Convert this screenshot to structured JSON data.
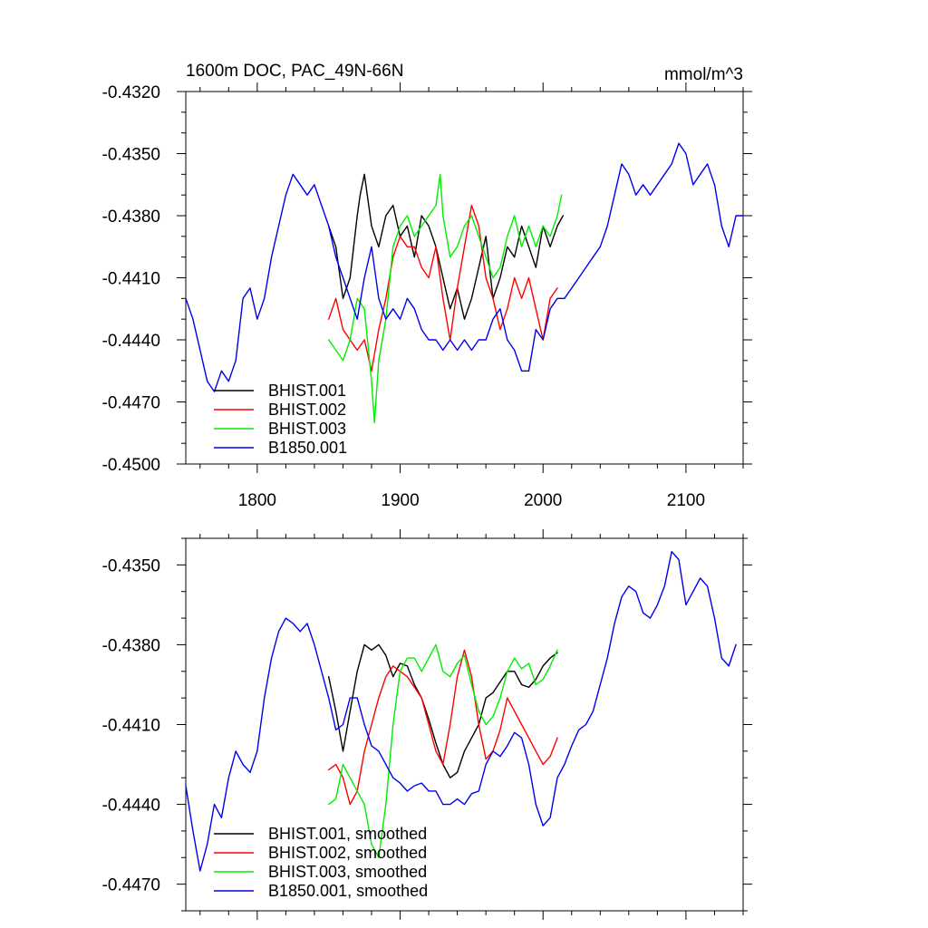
{
  "chart_data": [
    {
      "type": "line",
      "title": "1600m DOC, PAC_49N-66N",
      "units": "mmol/m^3",
      "xlim": [
        1750,
        2140
      ],
      "ylim": [
        -0.45,
        -0.432
      ],
      "xticks": [
        1800,
        1900,
        2000,
        2100
      ],
      "xtick_labels": [
        "1800",
        "1900",
        "2000",
        "2100"
      ],
      "yticks": [
        -0.432,
        -0.435,
        -0.438,
        -0.441,
        -0.444,
        -0.447,
        -0.45
      ],
      "ytick_labels": [
        "-0.4320",
        "-0.4350",
        "-0.4380",
        "-0.4410",
        "-0.4440",
        "-0.4470",
        "-0.4500"
      ],
      "legend_position": "bottom-left",
      "series": [
        {
          "name": "BHIST.001",
          "color": "#000000",
          "x": [
            1850,
            1855,
            1860,
            1865,
            1870,
            1872,
            1875,
            1880,
            1885,
            1890,
            1895,
            1900,
            1905,
            1910,
            1915,
            1920,
            1925,
            1930,
            1935,
            1940,
            1945,
            1950,
            1955,
            1960,
            1965,
            1970,
            1975,
            1980,
            1985,
            1990,
            1995,
            2000,
            2005,
            2010,
            2014
          ],
          "y": [
            -0.4385,
            -0.4395,
            -0.442,
            -0.441,
            -0.438,
            -0.437,
            -0.436,
            -0.4385,
            -0.4395,
            -0.438,
            -0.4375,
            -0.439,
            -0.4385,
            -0.44,
            -0.438,
            -0.4385,
            -0.4395,
            -0.441,
            -0.4425,
            -0.4415,
            -0.443,
            -0.442,
            -0.4405,
            -0.439,
            -0.442,
            -0.441,
            -0.4395,
            -0.44,
            -0.4385,
            -0.4395,
            -0.4405,
            -0.4385,
            -0.4395,
            -0.4385,
            -0.438
          ]
        },
        {
          "name": "BHIST.002",
          "color": "#ff0000",
          "x": [
            1850,
            1855,
            1860,
            1865,
            1870,
            1875,
            1880,
            1885,
            1890,
            1895,
            1900,
            1905,
            1910,
            1915,
            1920,
            1925,
            1930,
            1935,
            1940,
            1945,
            1950,
            1955,
            1960,
            1965,
            1970,
            1975,
            1980,
            1985,
            1990,
            1995,
            2000,
            2005,
            2010
          ],
          "y": [
            -0.443,
            -0.442,
            -0.4435,
            -0.444,
            -0.4445,
            -0.444,
            -0.4455,
            -0.4435,
            -0.442,
            -0.44,
            -0.439,
            -0.4395,
            -0.4395,
            -0.4405,
            -0.441,
            -0.4395,
            -0.442,
            -0.444,
            -0.4415,
            -0.4395,
            -0.4375,
            -0.4385,
            -0.441,
            -0.442,
            -0.4435,
            -0.4425,
            -0.441,
            -0.442,
            -0.441,
            -0.4425,
            -0.444,
            -0.442,
            -0.4415
          ]
        },
        {
          "name": "BHIST.003",
          "color": "#00ee00",
          "x": [
            1850,
            1855,
            1860,
            1865,
            1870,
            1875,
            1880,
            1882,
            1885,
            1890,
            1895,
            1900,
            1905,
            1910,
            1915,
            1920,
            1925,
            1928,
            1930,
            1935,
            1940,
            1945,
            1950,
            1955,
            1960,
            1965,
            1970,
            1975,
            1980,
            1985,
            1990,
            1995,
            2000,
            2005,
            2010,
            2013
          ],
          "y": [
            -0.444,
            -0.4445,
            -0.445,
            -0.444,
            -0.442,
            -0.4425,
            -0.446,
            -0.448,
            -0.445,
            -0.443,
            -0.4395,
            -0.4385,
            -0.438,
            -0.439,
            -0.4385,
            -0.438,
            -0.4375,
            -0.436,
            -0.438,
            -0.44,
            -0.4395,
            -0.4385,
            -0.438,
            -0.439,
            -0.44,
            -0.441,
            -0.4405,
            -0.439,
            -0.438,
            -0.4395,
            -0.4385,
            -0.4395,
            -0.4385,
            -0.439,
            -0.438,
            -0.437
          ]
        },
        {
          "name": "B1850.001",
          "color": "#0000ee",
          "x": [
            1750,
            1755,
            1760,
            1765,
            1770,
            1775,
            1780,
            1785,
            1790,
            1795,
            1800,
            1805,
            1810,
            1815,
            1820,
            1825,
            1830,
            1835,
            1840,
            1845,
            1850,
            1855,
            1860,
            1865,
            1870,
            1875,
            1880,
            1885,
            1890,
            1895,
            1900,
            1905,
            1910,
            1915,
            1920,
            1925,
            1930,
            1935,
            1940,
            1945,
            1950,
            1955,
            1960,
            1965,
            1970,
            1975,
            1980,
            1985,
            1990,
            1995,
            2000,
            2005,
            2010,
            2015,
            2020,
            2025,
            2030,
            2035,
            2040,
            2045,
            2050,
            2055,
            2060,
            2065,
            2070,
            2075,
            2080,
            2085,
            2090,
            2095,
            2100,
            2105,
            2110,
            2115,
            2120,
            2125,
            2130,
            2135,
            2140
          ],
          "y": [
            -0.442,
            -0.443,
            -0.4445,
            -0.446,
            -0.4465,
            -0.4455,
            -0.446,
            -0.445,
            -0.442,
            -0.4415,
            -0.443,
            -0.442,
            -0.44,
            -0.4385,
            -0.437,
            -0.436,
            -0.4365,
            -0.437,
            -0.4365,
            -0.4375,
            -0.4385,
            -0.44,
            -0.441,
            -0.442,
            -0.443,
            -0.441,
            -0.4395,
            -0.442,
            -0.443,
            -0.4425,
            -0.443,
            -0.442,
            -0.4425,
            -0.4435,
            -0.444,
            -0.444,
            -0.4445,
            -0.444,
            -0.4445,
            -0.444,
            -0.4445,
            -0.444,
            -0.444,
            -0.443,
            -0.4425,
            -0.444,
            -0.4445,
            -0.4455,
            -0.4455,
            -0.4435,
            -0.444,
            -0.4425,
            -0.442,
            -0.442,
            -0.4415,
            -0.441,
            -0.4405,
            -0.44,
            -0.4395,
            -0.4385,
            -0.437,
            -0.4355,
            -0.436,
            -0.437,
            -0.4365,
            -0.437,
            -0.4365,
            -0.436,
            -0.4355,
            -0.4345,
            -0.435,
            -0.4365,
            -0.436,
            -0.4355,
            -0.4365,
            -0.4385,
            -0.4395,
            -0.438,
            -0.438
          ]
        }
      ]
    },
    {
      "type": "line",
      "title": "",
      "xlim": [
        1750,
        2140
      ],
      "ylim": [
        -0.448,
        -0.434
      ],
      "xticks": [
        1800,
        1900,
        2000,
        2100
      ],
      "yticks": [
        -0.435,
        -0.438,
        -0.441,
        -0.444,
        -0.447
      ],
      "ytick_labels": [
        "-0.4350",
        "-0.4380",
        "-0.4410",
        "-0.4440",
        "-0.4470"
      ],
      "legend_position": "bottom-left",
      "series": [
        {
          "name": "BHIST.001, smoothed",
          "color": "#000000",
          "x": [
            1850,
            1855,
            1860,
            1865,
            1870,
            1875,
            1880,
            1885,
            1890,
            1895,
            1900,
            1905,
            1910,
            1915,
            1920,
            1925,
            1930,
            1935,
            1940,
            1945,
            1950,
            1955,
            1960,
            1965,
            1970,
            1975,
            1980,
            1985,
            1990,
            1995,
            2000,
            2005,
            2010
          ],
          "y": [
            -0.4392,
            -0.4405,
            -0.442,
            -0.4405,
            -0.439,
            -0.438,
            -0.4382,
            -0.438,
            -0.4384,
            -0.4392,
            -0.4387,
            -0.4388,
            -0.4395,
            -0.44,
            -0.4408,
            -0.4417,
            -0.4425,
            -0.443,
            -0.4428,
            -0.442,
            -0.4415,
            -0.441,
            -0.44,
            -0.4398,
            -0.4394,
            -0.439,
            -0.439,
            -0.4395,
            -0.4396,
            -0.4393,
            -0.4388,
            -0.4385,
            -0.4383
          ]
        },
        {
          "name": "BHIST.002, smoothed",
          "color": "#ff0000",
          "x": [
            1850,
            1855,
            1860,
            1865,
            1870,
            1875,
            1880,
            1885,
            1890,
            1895,
            1900,
            1905,
            1910,
            1915,
            1920,
            1925,
            1930,
            1935,
            1940,
            1945,
            1950,
            1955,
            1960,
            1965,
            1970,
            1975,
            1980,
            1985,
            1990,
            1995,
            2000,
            2005,
            2010
          ],
          "y": [
            -0.4427,
            -0.4425,
            -0.443,
            -0.444,
            -0.4435,
            -0.442,
            -0.441,
            -0.44,
            -0.4392,
            -0.4388,
            -0.439,
            -0.4392,
            -0.4396,
            -0.44,
            -0.441,
            -0.442,
            -0.4425,
            -0.441,
            -0.4392,
            -0.4382,
            -0.4392,
            -0.441,
            -0.4423,
            -0.442,
            -0.4412,
            -0.44,
            -0.4405,
            -0.441,
            -0.4415,
            -0.442,
            -0.4425,
            -0.4422,
            -0.4415
          ]
        },
        {
          "name": "BHIST.003, smoothed",
          "color": "#00ee00",
          "x": [
            1850,
            1855,
            1860,
            1865,
            1870,
            1875,
            1880,
            1885,
            1890,
            1895,
            1900,
            1905,
            1910,
            1915,
            1920,
            1925,
            1930,
            1935,
            1940,
            1945,
            1950,
            1955,
            1960,
            1965,
            1970,
            1975,
            1980,
            1985,
            1990,
            1995,
            2000,
            2005,
            2010
          ],
          "y": [
            -0.444,
            -0.4438,
            -0.4425,
            -0.443,
            -0.4435,
            -0.444,
            -0.4455,
            -0.446,
            -0.444,
            -0.441,
            -0.439,
            -0.4385,
            -0.4385,
            -0.439,
            -0.4385,
            -0.438,
            -0.439,
            -0.4392,
            -0.4387,
            -0.4384,
            -0.4395,
            -0.4405,
            -0.441,
            -0.4407,
            -0.44,
            -0.439,
            -0.4385,
            -0.4389,
            -0.4387,
            -0.4395,
            -0.4393,
            -0.4388,
            -0.4382
          ]
        },
        {
          "name": "B1850.001, smoothed",
          "color": "#0000ee",
          "x": [
            1750,
            1755,
            1760,
            1765,
            1770,
            1775,
            1780,
            1785,
            1790,
            1795,
            1800,
            1805,
            1810,
            1815,
            1820,
            1825,
            1830,
            1835,
            1840,
            1845,
            1850,
            1855,
            1860,
            1865,
            1870,
            1875,
            1880,
            1885,
            1890,
            1895,
            1900,
            1905,
            1910,
            1915,
            1920,
            1925,
            1930,
            1935,
            1940,
            1945,
            1950,
            1955,
            1960,
            1965,
            1970,
            1975,
            1980,
            1985,
            1990,
            1995,
            2000,
            2005,
            2010,
            2015,
            2020,
            2025,
            2030,
            2035,
            2040,
            2045,
            2050,
            2055,
            2060,
            2065,
            2070,
            2075,
            2080,
            2085,
            2090,
            2095,
            2100,
            2105,
            2110,
            2115,
            2120,
            2125,
            2130,
            2135
          ],
          "y": [
            -0.4433,
            -0.445,
            -0.4465,
            -0.4455,
            -0.444,
            -0.4445,
            -0.443,
            -0.442,
            -0.4425,
            -0.4428,
            -0.442,
            -0.44,
            -0.4385,
            -0.4375,
            -0.437,
            -0.4372,
            -0.4375,
            -0.4372,
            -0.438,
            -0.439,
            -0.44,
            -0.4412,
            -0.441,
            -0.44,
            -0.44,
            -0.441,
            -0.4418,
            -0.442,
            -0.4425,
            -0.443,
            -0.4432,
            -0.4435,
            -0.4433,
            -0.4432,
            -0.4435,
            -0.4435,
            -0.444,
            -0.444,
            -0.4438,
            -0.444,
            -0.4436,
            -0.4435,
            -0.4425,
            -0.442,
            -0.4422,
            -0.4418,
            -0.4413,
            -0.4415,
            -0.4425,
            -0.444,
            -0.4448,
            -0.4445,
            -0.443,
            -0.4425,
            -0.4418,
            -0.4412,
            -0.441,
            -0.4405,
            -0.4395,
            -0.4385,
            -0.4372,
            -0.4362,
            -0.4358,
            -0.436,
            -0.4368,
            -0.437,
            -0.4365,
            -0.4358,
            -0.4345,
            -0.4348,
            -0.4365,
            -0.436,
            -0.4355,
            -0.4358,
            -0.437,
            -0.4385,
            -0.4388,
            -0.438
          ]
        }
      ]
    }
  ]
}
